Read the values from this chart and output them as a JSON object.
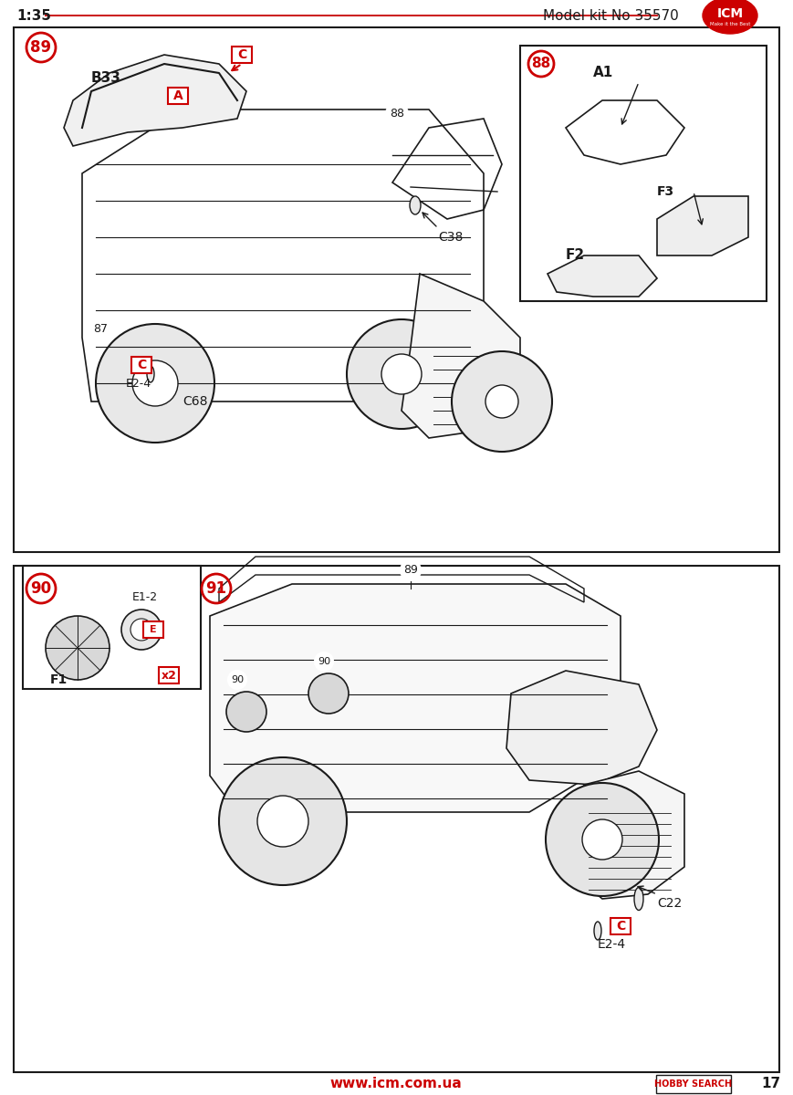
{
  "page_num": "17",
  "scale": "1:35",
  "model_kit_no": "Model kit No 35570",
  "website": "www.icm.com.ua",
  "hobby_search": "HOBBY SEARCH",
  "bg_color": "#ffffff",
  "border_color": "#000000",
  "red_color": "#cc0000",
  "line_color": "#1a1a1a",
  "header_line_color": "#cc2222",
  "step_top": {
    "step_num": "89",
    "labels": [
      "B33",
      "A",
      "C",
      "88",
      "C38",
      "87",
      "C",
      "E2-4",
      "C68"
    ],
    "sub_step": {
      "step_num": "88",
      "labels": [
        "A1",
        "F2",
        "F3"
      ]
    }
  },
  "step_bottom": {
    "step_num_left": "90",
    "step_num_right": "91",
    "labels_left": [
      "E1-2",
      "E",
      "F1",
      "x2"
    ],
    "labels_right": [
      "90",
      "90",
      "89",
      "C22",
      "C",
      "E2-4"
    ]
  }
}
